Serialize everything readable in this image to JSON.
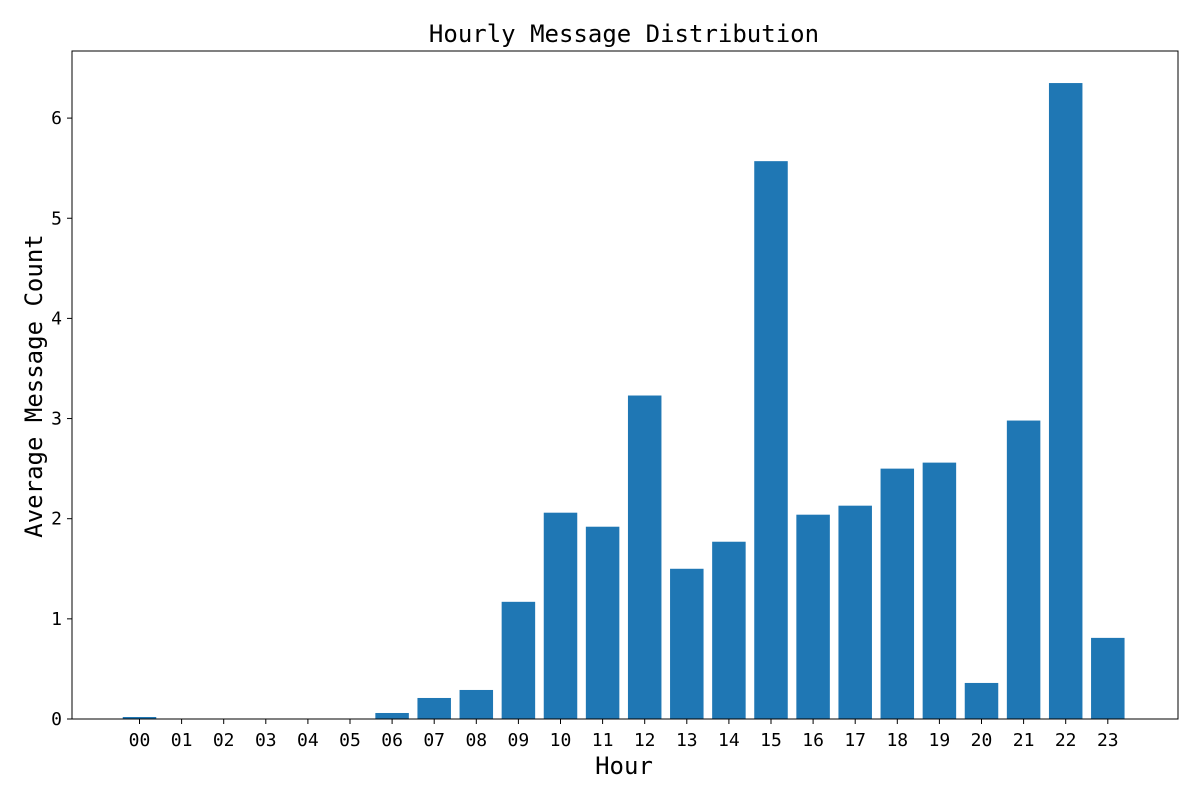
{
  "chart_data": {
    "type": "bar",
    "title": "Hourly Message Distribution",
    "xlabel": "Hour",
    "ylabel": "Average Message Count",
    "categories": [
      "00",
      "01",
      "02",
      "03",
      "04",
      "05",
      "06",
      "07",
      "08",
      "09",
      "10",
      "11",
      "12",
      "13",
      "14",
      "15",
      "16",
      "17",
      "18",
      "19",
      "20",
      "21",
      "22",
      "23"
    ],
    "values": [
      0.02,
      0,
      0,
      0,
      0,
      0,
      0.06,
      0.21,
      0.29,
      1.17,
      2.06,
      1.92,
      3.23,
      1.5,
      1.77,
      5.57,
      2.04,
      2.13,
      2.5,
      2.56,
      0.36,
      2.98,
      6.35,
      0.81
    ],
    "ylim": [
      0,
      6.67
    ],
    "yticks": [
      0,
      1,
      2,
      3,
      4,
      5,
      6
    ],
    "grid": false,
    "colors": {
      "bar": "#1f77b4",
      "axis": "#000000",
      "background": "#ffffff"
    }
  }
}
